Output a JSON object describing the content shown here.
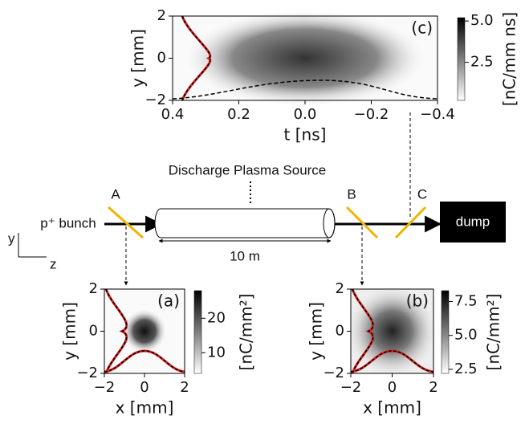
{
  "chart_data": [
    {
      "type": "heatmap",
      "panel": "(c)",
      "xlabel": "t [ns]",
      "ylabel": "y [mm]",
      "xlim": [
        0.4,
        -0.4
      ],
      "xticks": [
        0.4,
        0.2,
        {
          "value": 0,
          "label": "0.0"
        },
        {
          "value": -0.2,
          "label": "−0.2"
        },
        {
          "value": -0.4,
          "label": "−0.4"
        }
      ],
      "ylim": [
        -2,
        2
      ],
      "yticks": [
        {
          "value": -2,
          "label": "−2"
        },
        0,
        2
      ],
      "colorbar_label": "[nC/mm ns]",
      "clim": [
        0.2,
        5.2
      ],
      "cticks": [
        2.5,
        {
          "value": 5,
          "label": "5.0"
        }
      ]
    },
    {
      "type": "heatmap",
      "panel": "(a)",
      "xlabel": "x [mm]",
      "ylabel": "y [mm]",
      "xlim": [
        -2,
        2
      ],
      "xticks": [
        {
          "value": -2,
          "label": "−2"
        },
        0,
        2
      ],
      "ylim": [
        -2,
        2
      ],
      "yticks": [
        {
          "value": -2,
          "label": "−2"
        },
        0,
        2
      ],
      "colorbar_label": "[nC/mm²]",
      "clim": [
        4,
        28
      ],
      "cticks": [
        10,
        20
      ]
    },
    {
      "type": "heatmap",
      "panel": "(b)",
      "xlabel": "x [mm]",
      "ylabel": "y [mm]",
      "xlim": [
        -2,
        2
      ],
      "xticks": [
        {
          "value": -2,
          "label": "−2"
        },
        0,
        2
      ],
      "ylim": [
        -2,
        2
      ],
      "yticks": [
        {
          "value": -2,
          "label": "−2"
        },
        0,
        2
      ],
      "colorbar_label": "[nC/mm²]",
      "clim": [
        2.2,
        8.3
      ],
      "cticks": [
        2.5,
        {
          "value": 5,
          "label": "5.0"
        },
        7.5
      ]
    }
  ],
  "diagram": {
    "source": "Discharge Plasma Source",
    "bunch": "p⁺ bunch",
    "length": "10 m",
    "screens": [
      "A",
      "B",
      "C"
    ],
    "dump": "dump",
    "axis_y": "y",
    "axis_z": "z"
  }
}
